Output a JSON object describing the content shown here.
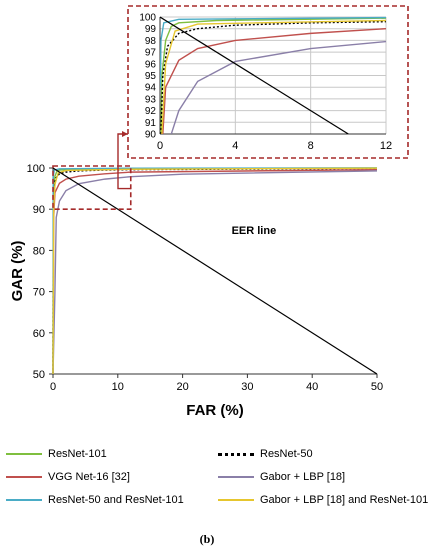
{
  "caption": "(b)",
  "chart_data": [
    {
      "panel": "main",
      "type": "line",
      "xlabel": "FAR (%)",
      "ylabel": "GAR (%)",
      "xlim": [
        0,
        50
      ],
      "ylim": [
        50,
        100
      ],
      "xticks": [
        0,
        10,
        20,
        30,
        40,
        50
      ],
      "yticks": [
        50,
        60,
        70,
        80,
        90,
        100
      ],
      "grid": false,
      "annotations": [
        {
          "text": "EER line",
          "x": 31,
          "y": 84
        }
      ],
      "series": [
        {
          "name": "ResNet-101",
          "color": "#7fbf3f",
          "style": "solid",
          "points": [
            [
              0,
              50
            ],
            [
              0.05,
              90
            ],
            [
              0.1,
              95
            ],
            [
              0.3,
              98
            ],
            [
              0.6,
              99.2
            ],
            [
              1,
              99.5
            ],
            [
              3,
              99.7
            ],
            [
              12,
              99.9
            ],
            [
              50,
              100
            ]
          ]
        },
        {
          "name": "ResNet-50",
          "color": "#000000",
          "style": "dotted",
          "points": [
            [
              0,
              50
            ],
            [
              0.05,
              90
            ],
            [
              0.15,
              95
            ],
            [
              0.4,
              97.5
            ],
            [
              1,
              98.6
            ],
            [
              2,
              99
            ],
            [
              4,
              99.3
            ],
            [
              8,
              99.5
            ],
            [
              12,
              99.6
            ],
            [
              50,
              99.9
            ]
          ]
        },
        {
          "name": "VGG Net-16 [32]",
          "color": "#c0504d",
          "style": "solid",
          "points": [
            [
              0,
              50
            ],
            [
              0.1,
              88
            ],
            [
              0.3,
              94
            ],
            [
              1,
              96.3
            ],
            [
              2,
              97.3
            ],
            [
              4,
              98
            ],
            [
              8,
              98.6
            ],
            [
              12,
              99
            ],
            [
              50,
              99.6
            ]
          ]
        },
        {
          "name": "Gabor + LBP [18]",
          "color": "#8a7fa8",
          "style": "solid",
          "points": [
            [
              0,
              50
            ],
            [
              0.3,
              70
            ],
            [
              0.5,
              88
            ],
            [
              1,
              92
            ],
            [
              2,
              94.5
            ],
            [
              4,
              96.2
            ],
            [
              8,
              97.3
            ],
            [
              12,
              97.9
            ],
            [
              20,
              98.5
            ],
            [
              50,
              99.3
            ]
          ]
        },
        {
          "name": "ResNet-50 and ResNet-101",
          "color": "#4aacc6",
          "style": "solid",
          "points": [
            [
              0,
              50
            ],
            [
              0.02,
              94
            ],
            [
              0.05,
              98
            ],
            [
              0.2,
              99.5
            ],
            [
              1,
              99.8
            ],
            [
              12,
              99.95
            ],
            [
              50,
              100
            ]
          ]
        },
        {
          "name": "Gabor + LBP [18] and ResNet-101",
          "color": "#e6c62e",
          "style": "solid",
          "points": [
            [
              0,
              50
            ],
            [
              0.1,
              90
            ],
            [
              0.3,
              96
            ],
            [
              0.8,
              98.8
            ],
            [
              2,
              99.4
            ],
            [
              12,
              99.7
            ],
            [
              50,
              99.95
            ]
          ]
        },
        {
          "name": "",
          "color": "#000000",
          "style": "solid",
          "points": [
            [
              0,
              100
            ],
            [
              50,
              50
            ]
          ]
        }
      ]
    },
    {
      "panel": "inset",
      "type": "line",
      "xlim": [
        0,
        12
      ],
      "ylim": [
        90,
        100
      ],
      "xticks": [
        0,
        4,
        8,
        12
      ],
      "yticks": [
        90,
        91,
        92,
        93,
        94,
        95,
        96,
        97,
        98,
        99,
        100
      ],
      "grid": true,
      "series": [
        {
          "name": "ResNet-101",
          "color": "#7fbf3f",
          "style": "solid",
          "points": [
            [
              0.05,
              90
            ],
            [
              0.1,
              95
            ],
            [
              0.3,
              98
            ],
            [
              0.6,
              99.2
            ],
            [
              1,
              99.5
            ],
            [
              3,
              99.7
            ],
            [
              12,
              99.9
            ]
          ]
        },
        {
          "name": "ResNet-50",
          "color": "#000000",
          "style": "dotted",
          "points": [
            [
              0.05,
              90
            ],
            [
              0.15,
              95
            ],
            [
              0.4,
              97.5
            ],
            [
              1,
              98.6
            ],
            [
              2,
              99
            ],
            [
              4,
              99.3
            ],
            [
              8,
              99.5
            ],
            [
              12,
              99.6
            ]
          ]
        },
        {
          "name": "VGG Net-16 [32]",
          "color": "#c0504d",
          "style": "solid",
          "points": [
            [
              0.15,
              90
            ],
            [
              0.3,
              94
            ],
            [
              1,
              96.3
            ],
            [
              2,
              97.3
            ],
            [
              4,
              98
            ],
            [
              8,
              98.6
            ],
            [
              12,
              99
            ]
          ]
        },
        {
          "name": "Gabor + LBP [18]",
          "color": "#8a7fa8",
          "style": "solid",
          "points": [
            [
              0.6,
              90
            ],
            [
              1,
              92
            ],
            [
              2,
              94.5
            ],
            [
              4,
              96.2
            ],
            [
              8,
              97.3
            ],
            [
              12,
              97.9
            ]
          ]
        },
        {
          "name": "ResNet-50 and ResNet-101",
          "color": "#4aacc6",
          "style": "solid",
          "points": [
            [
              0.02,
              94
            ],
            [
              0.05,
              98
            ],
            [
              0.2,
              99.5
            ],
            [
              1,
              99.8
            ],
            [
              12,
              99.95
            ]
          ]
        },
        {
          "name": "Gabor + LBP [18] and ResNet-101",
          "color": "#e6c62e",
          "style": "solid",
          "points": [
            [
              0.1,
              90
            ],
            [
              0.3,
              96
            ],
            [
              0.8,
              98.8
            ],
            [
              2,
              99.4
            ],
            [
              12,
              99.7
            ]
          ]
        },
        {
          "name": "",
          "color": "#000000",
          "style": "solid",
          "points": [
            [
              0,
              100
            ],
            [
              10,
              90
            ]
          ]
        }
      ]
    }
  ],
  "legend": [
    {
      "label": "ResNet-101",
      "color": "#7fbf3f",
      "style": "solid"
    },
    {
      "label": "ResNet-50",
      "color": "#000000",
      "style": "dotted"
    },
    {
      "label": "VGG Net-16 [32]",
      "color": "#c0504d",
      "style": "solid"
    },
    {
      "label": "Gabor + LBP [18]",
      "color": "#8a7fa8",
      "style": "solid"
    },
    {
      "label": "ResNet-50 and ResNet-101",
      "color": "#4aacc6",
      "style": "solid"
    },
    {
      "label": "Gabor + LBP [18] and ResNet-101",
      "color": "#e6c62e",
      "style": "solid"
    }
  ],
  "zoom_box_color": "#a52a2a"
}
